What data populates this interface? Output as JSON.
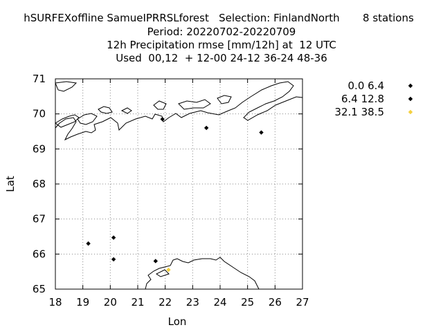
{
  "title": {
    "line1": "hSURFEXoffline SamueIPRRSLforest   Selection: FinlandNorth       8 stations",
    "line2": "Period: 20220702-20220709",
    "line3": "12h Precipitation rmse [mm/12h] at  12 UTC",
    "line4": "Used  00,12  + 12-00 24-12 36-24 48-36"
  },
  "chart_data": {
    "type": "scatter",
    "title": "hSURFEXoffline SamueIPRRSLforest   Selection: FinlandNorth       8 stations",
    "subtitle": "Period: 20220702-20220709",
    "xlabel": "Lon",
    "ylabel": "Lat",
    "xlim": [
      18,
      27
    ],
    "ylim": [
      65,
      71
    ],
    "x_ticks": [
      "18",
      "19",
      "20",
      "21",
      "22",
      "23",
      "24",
      "25",
      "26",
      "27"
    ],
    "y_ticks": [
      "65",
      "66",
      "67",
      "68",
      "69",
      "70",
      "71"
    ],
    "grid": true,
    "legend_position": "outside-right",
    "series": [
      {
        "name": "0.0 6.4",
        "color": "#000000",
        "marker": "diamond",
        "points": [
          {
            "x": 21.9,
            "y": 69.85
          },
          {
            "x": 23.5,
            "y": 69.6
          },
          {
            "x": 25.5,
            "y": 69.47
          },
          {
            "x": 19.2,
            "y": 66.3
          },
          {
            "x": 20.12,
            "y": 66.47
          },
          {
            "x": 20.12,
            "y": 65.85
          },
          {
            "x": 21.65,
            "y": 65.8
          }
        ]
      },
      {
        "name": "6.4 12.8",
        "color": "#000000",
        "marker": "diamond",
        "points": []
      },
      {
        "name": "32.1 38.5",
        "color": "#f4d03f",
        "marker": "diamond",
        "points": [
          {
            "x": 22.12,
            "y": 65.55
          }
        ]
      }
    ]
  }
}
